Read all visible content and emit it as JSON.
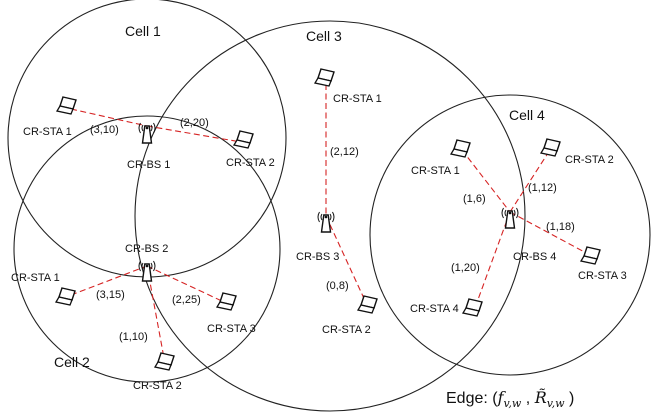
{
  "cells": [
    {
      "id": "cell1",
      "label": "Cell 1"
    },
    {
      "id": "cell2",
      "label": "Cell 2"
    },
    {
      "id": "cell3",
      "label": "Cell 3"
    },
    {
      "id": "cell4",
      "label": "Cell 4"
    }
  ],
  "base_stations": {
    "bs1": "CR-BS 1",
    "bs2": "CR-BS 2",
    "bs3": "CR-BS 3",
    "bs4": "CR-BS 4"
  },
  "stations": {
    "c1_sta1": "CR-STA 1",
    "c1_sta2": "CR-STA 2",
    "c2_sta1": "CR-STA 1",
    "c2_sta2": "CR-STA 2",
    "c2_sta3": "CR-STA 3",
    "c3_sta1": "CR-STA 1",
    "c3_sta2": "CR-STA 2",
    "c4_sta1": "CR-STA 1",
    "c4_sta2": "CR-STA 2",
    "c4_sta3": "CR-STA 3",
    "c4_sta4": "CR-STA 4"
  },
  "edges": {
    "c1_sta1": "(3,10)",
    "c1_sta2": "(2,20)",
    "c2_sta1": "(3,15)",
    "c2_sta2": "(1,10)",
    "c2_sta3": "(2,25)",
    "c3_sta1": "(2,12)",
    "c3_sta2": "(0,8)",
    "c4_sta1": "(1,6)",
    "c4_sta2": "(1,12)",
    "c4_sta3": "(1,18)",
    "c4_sta4": "(1,20)"
  },
  "legend": {
    "prefix": "Edge: (",
    "f_var": "f",
    "f_sub": "v,w",
    "comma": " , ",
    "r_var": "R̃",
    "r_sub": "v,w",
    "suffix": " )"
  }
}
